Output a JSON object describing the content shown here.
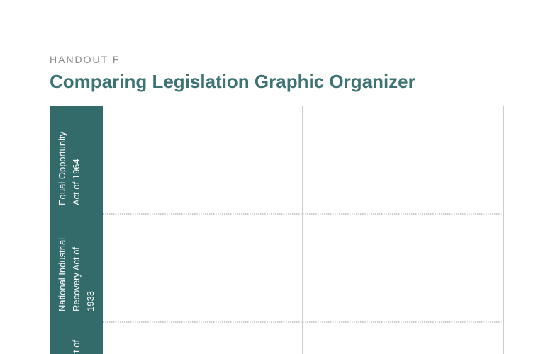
{
  "header": {
    "label": "HANDOUT F",
    "title": "Comparing Legislation Graphic Organizer"
  },
  "table": {
    "rows": [
      {
        "label": [
          "Equal Opportunity",
          "Act of 1964"
        ]
      },
      {
        "label": [
          "National Industrial",
          "Recovery Act of",
          "1933"
        ]
      },
      {
        "label": [
          "",
          "t of"
        ]
      }
    ]
  }
}
